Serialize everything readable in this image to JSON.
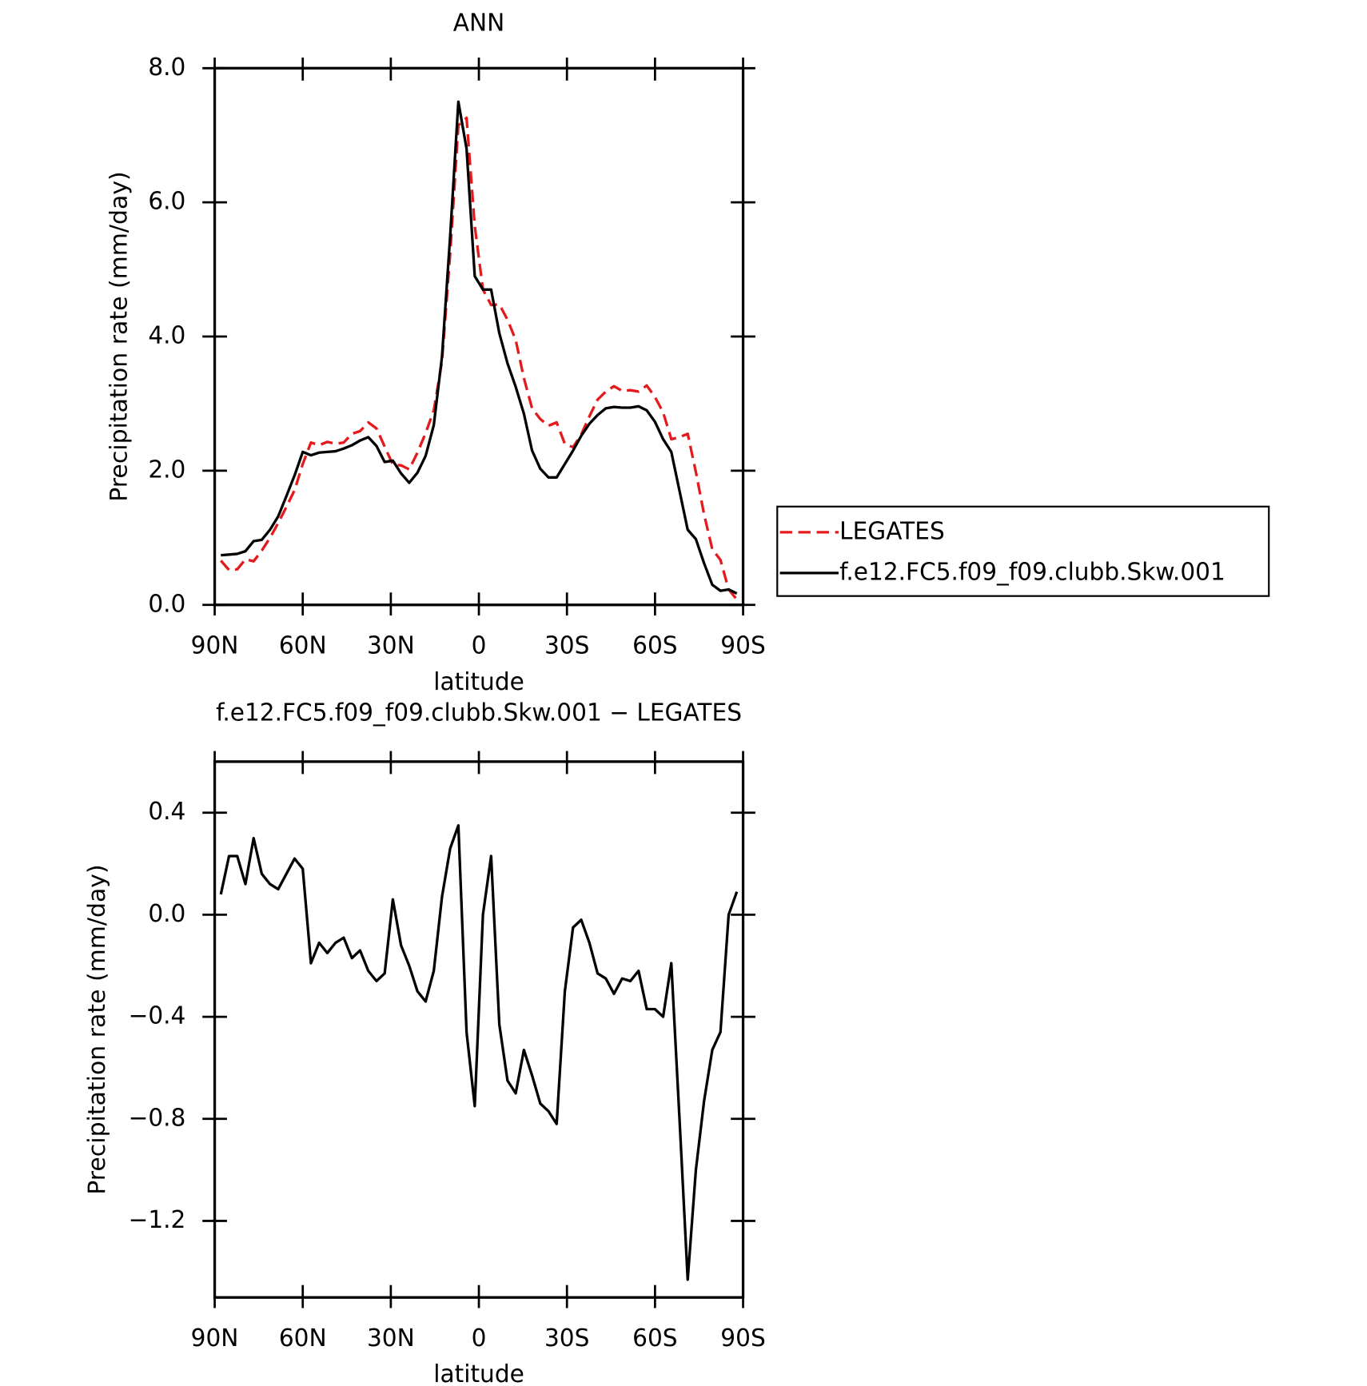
{
  "chart_data": [
    {
      "type": "line",
      "title": "ANN",
      "xlabel": "latitude",
      "ylabel": "Precipitation rate (mm/day)",
      "xlim": [
        90,
        -90
      ],
      "xticks": [
        {
          "value": 90,
          "label": "90N"
        },
        {
          "value": 60,
          "label": "60N"
        },
        {
          "value": 30,
          "label": "30N"
        },
        0,
        {
          "value": -30,
          "label": "30S"
        },
        {
          "value": -60,
          "label": "60S"
        },
        {
          "value": -90,
          "label": "90S"
        }
      ],
      "ylim": [
        0,
        8
      ],
      "yticks": [
        {
          "value": 0,
          "label": "0.0"
        },
        {
          "value": 2,
          "label": "2.0"
        },
        {
          "value": 4,
          "label": "4.0"
        },
        {
          "value": 6,
          "label": "6.0"
        },
        {
          "value": 8,
          "label": "8.0"
        }
      ],
      "legend": "right",
      "x": [
        87.9,
        85.11,
        82.32,
        79.53,
        76.74,
        73.95,
        71.16,
        68.37,
        65.58,
        62.79,
        60.0,
        57.21,
        54.42,
        51.63,
        48.84,
        46.05,
        43.26,
        40.47,
        37.68,
        34.89,
        32.1,
        29.31,
        26.52,
        23.73,
        20.94,
        18.15,
        15.36,
        12.57,
        9.78,
        6.99,
        4.2,
        1.41,
        -1.38,
        -4.17,
        -6.96,
        -9.75,
        -12.54,
        -15.33,
        -18.12,
        -20.91,
        -23.7,
        -26.49,
        -29.28,
        -32.07,
        -34.86,
        -37.65,
        -40.44,
        -43.23,
        -46.02,
        -48.81,
        -51.6,
        -54.39,
        -57.18,
        -59.97,
        -62.76,
        -65.55,
        -68.34,
        -71.13,
        -73.92,
        -76.71,
        -79.5,
        -82.29,
        -85.08,
        -87.87
      ],
      "series": [
        {
          "name": "LEGATES",
          "color": "#e41a1c",
          "dash": true,
          "values": [
            0.66,
            0.52,
            0.53,
            0.68,
            0.65,
            0.81,
            1.0,
            1.22,
            1.46,
            1.71,
            2.1,
            2.42,
            2.38,
            2.43,
            2.4,
            2.42,
            2.55,
            2.59,
            2.72,
            2.63,
            2.36,
            2.09,
            2.08,
            2.02,
            2.27,
            2.56,
            2.9,
            3.63,
            5.24,
            7.15,
            7.26,
            5.65,
            4.7,
            4.47,
            4.48,
            4.25,
            3.95,
            3.38,
            2.93,
            2.77,
            2.67,
            2.72,
            2.4,
            2.35,
            2.54,
            2.81,
            3.06,
            3.18,
            3.26,
            3.19,
            3.2,
            3.18,
            3.27,
            3.1,
            2.87,
            2.47,
            2.5,
            2.55,
            1.98,
            1.35,
            0.83,
            0.67,
            0.23,
            0.08
          ]
        },
        {
          "name": "f.e12.FC5.f09_f09.clubb.Skw.001",
          "color": "#000000",
          "dash": false,
          "values": [
            0.74,
            0.75,
            0.76,
            0.8,
            0.95,
            0.97,
            1.12,
            1.32,
            1.62,
            1.93,
            2.28,
            2.23,
            2.27,
            2.28,
            2.29,
            2.33,
            2.38,
            2.45,
            2.5,
            2.37,
            2.13,
            2.15,
            1.96,
            1.82,
            1.97,
            2.22,
            2.68,
            3.7,
            5.5,
            7.5,
            6.8,
            4.9,
            4.7,
            4.7,
            4.05,
            3.6,
            3.25,
            2.85,
            2.3,
            2.03,
            1.9,
            1.9,
            2.1,
            2.3,
            2.52,
            2.7,
            2.83,
            2.93,
            2.95,
            2.94,
            2.94,
            2.96,
            2.9,
            2.73,
            2.47,
            2.28,
            1.7,
            1.12,
            0.98,
            0.62,
            0.3,
            0.21,
            0.23,
            0.17
          ]
        }
      ]
    },
    {
      "type": "line",
      "title": "f.e12.FC5.f09_f09.clubb.Skw.001 − LEGATES",
      "xlabel": "latitude",
      "ylabel": "Precipitation rate (mm/day)",
      "xlim": [
        90,
        -90
      ],
      "xticks": [
        {
          "value": 90,
          "label": "90N"
        },
        {
          "value": 60,
          "label": "60N"
        },
        {
          "value": 30,
          "label": "30N"
        },
        0,
        {
          "value": -30,
          "label": "30S"
        },
        {
          "value": -60,
          "label": "60S"
        },
        {
          "value": -90,
          "label": "90S"
        }
      ],
      "ylim": [
        -1.5,
        0.6
      ],
      "yticks": [
        {
          "value": -1.2,
          "label": "−1.2"
        },
        {
          "value": -0.8,
          "label": "−0.8"
        },
        {
          "value": -0.4,
          "label": "−0.4"
        },
        {
          "value": 0,
          "label": "0.0"
        },
        {
          "value": 0.4,
          "label": "0.4"
        }
      ],
      "x": [
        87.9,
        85.11,
        82.32,
        79.53,
        76.74,
        73.95,
        71.16,
        68.37,
        65.58,
        62.79,
        60.0,
        57.21,
        54.42,
        51.63,
        48.84,
        46.05,
        43.26,
        40.47,
        37.68,
        34.89,
        32.1,
        29.31,
        26.52,
        23.73,
        20.94,
        18.15,
        15.36,
        12.57,
        9.78,
        6.99,
        4.2,
        1.41,
        -1.38,
        -4.17,
        -6.96,
        -9.75,
        -12.54,
        -15.33,
        -18.12,
        -20.91,
        -23.7,
        -26.49,
        -29.28,
        -32.07,
        -34.86,
        -37.65,
        -40.44,
        -43.23,
        -46.02,
        -48.81,
        -51.6,
        -54.39,
        -57.18,
        -59.97,
        -62.76,
        -65.55,
        -68.34,
        -71.13,
        -73.92,
        -76.71,
        -79.5,
        -82.29,
        -85.08,
        -87.87
      ],
      "series": [
        {
          "color": "#000000",
          "dash": false,
          "values": [
            0.08,
            0.23,
            0.23,
            0.12,
            0.3,
            0.16,
            0.12,
            0.1,
            0.16,
            0.22,
            0.18,
            -0.19,
            -0.11,
            -0.15,
            -0.11,
            -0.09,
            -0.17,
            -0.14,
            -0.22,
            -0.26,
            -0.23,
            0.06,
            -0.12,
            -0.2,
            -0.3,
            -0.34,
            -0.22,
            0.07,
            0.26,
            0.35,
            -0.46,
            -0.75,
            0.0,
            0.23,
            -0.43,
            -0.65,
            -0.7,
            -0.53,
            -0.63,
            -0.74,
            -0.77,
            -0.82,
            -0.3,
            -0.05,
            -0.02,
            -0.11,
            -0.23,
            -0.25,
            -0.31,
            -0.25,
            -0.26,
            -0.22,
            -0.37,
            -0.37,
            -0.4,
            -0.19,
            -0.8,
            -1.43,
            -1.0,
            -0.73,
            -0.53,
            -0.46,
            0.0,
            0.09
          ]
        }
      ]
    }
  ]
}
